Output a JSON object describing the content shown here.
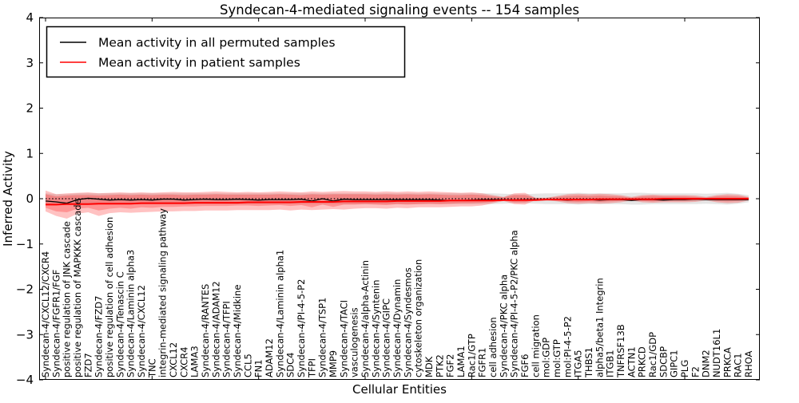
{
  "title": "Syndecan-4-mediated signaling events -- 154 samples",
  "legend": {
    "entries": [
      {
        "label": "Mean activity in all permuted samples",
        "color": "#000000"
      },
      {
        "label": "Mean activity in patient samples",
        "color": "#ff0000"
      }
    ]
  },
  "chart_data": {
    "type": "line",
    "title": "Syndecan-4-mediated signaling events -- 154 samples",
    "xlabel": "Cellular Entities",
    "ylabel": "Inferred Activity",
    "ylim": [
      -4,
      4
    ],
    "yticks": [
      4,
      3,
      2,
      1,
      0,
      -1,
      -2,
      -3,
      -4
    ],
    "x_major_tick_indices": [
      0,
      10,
      20,
      30,
      40,
      50,
      60
    ],
    "grid": false,
    "legend_position": "upper-left",
    "categories": [
      "Syndecan-4/CXCL12/CXCR4",
      "Syndecan-4/FGFR1/FGF",
      "positive regulation of JNK cascade",
      "positive regulation of MAPKKK cascade",
      "FZD7",
      "Syndecan-4/FZD7",
      "positive regulation of cell adhesion",
      "Syndecan-4/Tenascin C",
      "Syndecan-4/Laminin alpha3",
      "Syndecan-4/CXCL12",
      "TNC",
      "integrin-mediated signaling pathway",
      "CXCL12",
      "CXCR4",
      "LAMA3",
      "Syndecan-4/RANTES",
      "Syndecan-4/ADAM12",
      "Syndecan-4/TFPI",
      "Syndecan-4/Midkine",
      "CCL5",
      "FN1",
      "ADAM12",
      "Syndecan-4/Laminin alpha1",
      "SDC4",
      "Syndecan-4/PI-4-5-P2",
      "TFPI",
      "Syndecan-4/TSP1",
      "MMP9",
      "Syndecan-4/TACI",
      "vasculogenesis",
      "Syndecan-4/alpha-Actinin",
      "Syndecan-4/Syntenin",
      "Syndecan-4/GIPC",
      "Syndecan-4/Dynamin",
      "Syndecan-4/Syndesmos",
      "cytoskeleton organization",
      "MDK",
      "PTK2",
      "FGF2",
      "LAMA1",
      "Rac1/GTP",
      "FGFR1",
      "cell adhesion",
      "Syndecan-4/PKC alpha",
      "Syndecan-4/PI-4-5-P2/PKC alpha",
      "FGF6",
      "cell migration",
      "mol:GDP",
      "mol:GTP",
      "mol:PI-4-5-P2",
      "ITGA5",
      "THBS1",
      "alpha5/beta1 Integrin",
      "ITGB1",
      "TNFRSF13B",
      "ACTN1",
      "PRKCD",
      "Rac1/GDP",
      "SDCBP",
      "GIPC1",
      "PLG",
      "F2",
      "DNM2",
      "NUDT16L1",
      "PRKCA",
      "RAC1",
      "RHOA"
    ],
    "series": [
      {
        "name": "Mean activity in all permuted samples",
        "color": "#000000",
        "width": 1.3,
        "values": [
          -0.05,
          -0.07,
          -0.1,
          -0.02,
          0.01,
          -0.01,
          -0.03,
          -0.02,
          -0.03,
          -0.02,
          -0.03,
          -0.01,
          -0.01,
          -0.03,
          -0.02,
          -0.01,
          -0.02,
          -0.02,
          -0.01,
          -0.02,
          -0.03,
          -0.02,
          -0.02,
          -0.02,
          -0.01,
          -0.05,
          0.0,
          -0.05,
          -0.01,
          -0.02,
          -0.02,
          -0.02,
          -0.02,
          -0.02,
          -0.02,
          -0.02,
          -0.02,
          -0.03,
          -0.04,
          -0.04,
          -0.03,
          -0.02,
          -0.02,
          -0.02,
          -0.03,
          -0.02,
          -0.02,
          -0.02,
          -0.02,
          -0.03,
          -0.02,
          -0.02,
          -0.03,
          -0.02,
          -0.02,
          -0.04,
          -0.02,
          -0.02,
          -0.03,
          -0.02,
          -0.02,
          -0.01,
          -0.02,
          -0.02,
          -0.02,
          -0.02,
          -0.02
        ]
      },
      {
        "name": "Mean activity in patient samples",
        "color": "#ff0000",
        "width": 2,
        "values": [
          -0.13,
          -0.13,
          -0.12,
          -0.12,
          -0.12,
          -0.11,
          -0.11,
          -0.11,
          -0.11,
          -0.1,
          -0.1,
          -0.1,
          -0.1,
          -0.1,
          -0.09,
          -0.09,
          -0.09,
          -0.09,
          -0.09,
          -0.08,
          -0.08,
          -0.08,
          -0.08,
          -0.08,
          -0.07,
          -0.07,
          -0.07,
          -0.07,
          -0.06,
          -0.06,
          -0.06,
          -0.06,
          -0.06,
          -0.05,
          -0.05,
          -0.05,
          -0.05,
          -0.05,
          -0.04,
          -0.04,
          -0.04,
          -0.04,
          -0.04,
          -0.03,
          -0.03,
          -0.03,
          -0.03,
          -0.02,
          -0.02,
          -0.02,
          -0.02,
          -0.02,
          -0.01,
          -0.01,
          -0.01,
          -0.01,
          -0.01,
          -0.01,
          0.0,
          0.0,
          0.0,
          0.0,
          0.0,
          0.0,
          0.0,
          0.0,
          0.0
        ]
      }
    ],
    "zero_line": {
      "y": 0,
      "style": "dotted",
      "color": "#000000"
    },
    "bands": [
      {
        "name": "permuted-sample-range",
        "color": "#888888",
        "opacity": 0.22,
        "top": [
          0.12,
          0.1,
          0.1,
          0.12,
          0.12,
          0.12,
          0.12,
          0.12,
          0.12,
          0.12,
          0.12,
          0.12,
          0.12,
          0.12,
          0.12,
          0.12,
          0.12,
          0.12,
          0.12,
          0.12,
          0.12,
          0.12,
          0.12,
          0.12,
          0.12,
          0.12,
          0.12,
          0.12,
          0.12,
          0.12,
          0.12,
          0.12,
          0.12,
          0.12,
          0.12,
          0.12,
          0.12,
          0.12,
          0.12,
          0.12,
          0.12,
          0.12,
          0.12,
          0.11,
          0.1,
          0.1,
          0.11,
          0.12,
          0.12,
          0.12,
          0.13,
          0.12,
          0.12,
          0.12,
          0.12,
          0.13,
          0.13,
          0.12,
          0.12,
          0.12,
          0.12,
          0.12,
          0.11,
          0.12,
          0.13,
          0.11,
          0.08
        ],
        "bottom": [
          -0.12,
          -0.1,
          -0.1,
          -0.12,
          -0.12,
          -0.12,
          -0.12,
          -0.12,
          -0.12,
          -0.12,
          -0.12,
          -0.12,
          -0.12,
          -0.12,
          -0.12,
          -0.12,
          -0.12,
          -0.12,
          -0.12,
          -0.12,
          -0.12,
          -0.12,
          -0.12,
          -0.12,
          -0.12,
          -0.12,
          -0.12,
          -0.12,
          -0.12,
          -0.12,
          -0.12,
          -0.12,
          -0.12,
          -0.12,
          -0.12,
          -0.12,
          -0.12,
          -0.12,
          -0.12,
          -0.12,
          -0.12,
          -0.12,
          -0.12,
          -0.11,
          -0.1,
          -0.1,
          -0.11,
          -0.12,
          -0.12,
          -0.12,
          -0.13,
          -0.12,
          -0.12,
          -0.12,
          -0.12,
          -0.13,
          -0.13,
          -0.12,
          -0.12,
          -0.12,
          -0.12,
          -0.12,
          -0.11,
          -0.12,
          -0.13,
          -0.11,
          -0.08
        ]
      },
      {
        "name": "patient-sample-range-outer",
        "color": "#ff0000",
        "opacity": 0.24,
        "top": [
          0.18,
          0.1,
          0.12,
          0.13,
          0.14,
          0.12,
          0.13,
          0.14,
          0.13,
          0.14,
          0.13,
          0.14,
          0.15,
          0.14,
          0.14,
          0.15,
          0.16,
          0.15,
          0.14,
          0.15,
          0.14,
          0.15,
          0.16,
          0.15,
          0.14,
          0.16,
          0.15,
          0.16,
          0.17,
          0.16,
          0.16,
          0.15,
          0.16,
          0.15,
          0.16,
          0.15,
          0.16,
          0.15,
          0.14,
          0.13,
          0.14,
          0.12,
          0.08,
          0.04,
          0.12,
          0.13,
          0.02,
          0.02,
          0.06,
          0.1,
          0.11,
          0.1,
          0.11,
          0.1,
          0.08,
          0.04,
          0.08,
          0.09,
          0.08,
          0.08,
          0.08,
          0.07,
          0.04,
          0.08,
          0.1,
          0.09,
          0.04
        ],
        "bottom": [
          -0.28,
          -0.38,
          -0.44,
          -0.33,
          -0.3,
          -0.38,
          -0.32,
          -0.3,
          -0.31,
          -0.3,
          -0.29,
          -0.28,
          -0.28,
          -0.27,
          -0.27,
          -0.26,
          -0.26,
          -0.26,
          -0.25,
          -0.25,
          -0.25,
          -0.25,
          -0.24,
          -0.26,
          -0.24,
          -0.25,
          -0.24,
          -0.23,
          -0.24,
          -0.22,
          -0.21,
          -0.21,
          -0.22,
          -0.2,
          -0.21,
          -0.19,
          -0.19,
          -0.19,
          -0.18,
          -0.17,
          -0.17,
          -0.15,
          -0.1,
          -0.05,
          -0.12,
          -0.13,
          -0.03,
          -0.03,
          -0.06,
          -0.1,
          -0.11,
          -0.1,
          -0.11,
          -0.1,
          -0.08,
          -0.04,
          -0.08,
          -0.09,
          -0.08,
          -0.08,
          -0.08,
          -0.07,
          -0.04,
          -0.08,
          -0.1,
          -0.09,
          -0.04
        ]
      },
      {
        "name": "patient-sample-range-inner",
        "color": "#ff0000",
        "opacity": 0.24,
        "top": [
          0.1,
          0.05,
          0.07,
          0.08,
          0.08,
          0.07,
          0.08,
          0.09,
          0.08,
          0.09,
          0.08,
          0.09,
          0.09,
          0.08,
          0.09,
          0.09,
          0.1,
          0.09,
          0.09,
          0.09,
          0.09,
          0.09,
          0.1,
          0.09,
          0.08,
          0.1,
          0.09,
          0.1,
          0.1,
          0.1,
          0.1,
          0.09,
          0.1,
          0.09,
          0.1,
          0.09,
          0.1,
          0.09,
          0.08,
          0.08,
          0.09,
          0.08,
          0.05,
          0.03,
          0.08,
          0.08,
          0.02,
          0.02,
          0.04,
          0.06,
          0.07,
          0.06,
          0.07,
          0.06,
          0.05,
          0.02,
          0.05,
          0.06,
          0.05,
          0.05,
          0.05,
          0.04,
          0.02,
          0.05,
          0.06,
          0.05,
          0.03
        ],
        "bottom": [
          -0.2,
          -0.28,
          -0.3,
          -0.22,
          -0.2,
          -0.26,
          -0.22,
          -0.2,
          -0.22,
          -0.19,
          -0.2,
          -0.18,
          -0.18,
          -0.17,
          -0.17,
          -0.16,
          -0.16,
          -0.16,
          -0.15,
          -0.15,
          -0.16,
          -0.15,
          -0.14,
          -0.16,
          -0.14,
          -0.19,
          -0.13,
          -0.18,
          -0.13,
          -0.13,
          -0.12,
          -0.13,
          -0.14,
          -0.12,
          -0.13,
          -0.12,
          -0.11,
          -0.12,
          -0.11,
          -0.1,
          -0.1,
          -0.09,
          -0.07,
          -0.03,
          -0.08,
          -0.08,
          -0.02,
          -0.02,
          -0.04,
          -0.06,
          -0.07,
          -0.06,
          -0.07,
          -0.06,
          -0.05,
          -0.02,
          -0.05,
          -0.06,
          -0.05,
          -0.05,
          -0.05,
          -0.04,
          -0.02,
          -0.05,
          -0.06,
          -0.05,
          -0.03
        ]
      }
    ]
  }
}
